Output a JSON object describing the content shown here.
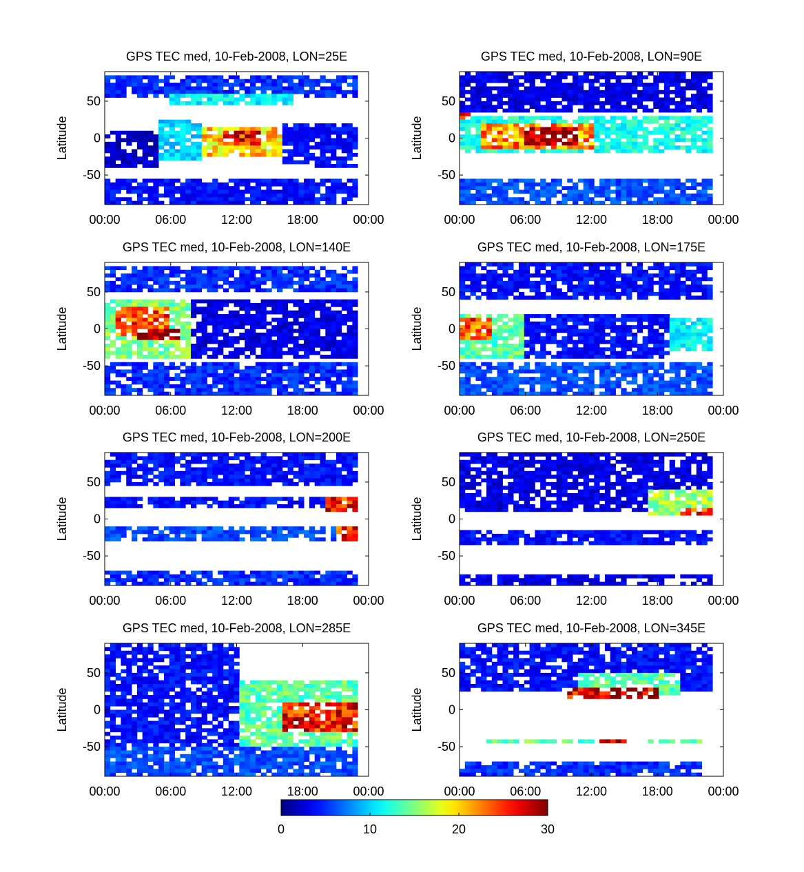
{
  "chart_data": {
    "type": "heatmap",
    "colormap": "jet",
    "colorbar": {
      "range": [
        0,
        30
      ],
      "ticks": [
        "0",
        "10",
        "20",
        "30"
      ]
    },
    "xlim_hours": [
      0,
      24
    ],
    "ylim": [
      -90,
      90
    ],
    "panels": [
      {
        "title": "GPS TEC med, 10-Feb-2008, LON=25E",
        "ylabel": "Latitude",
        "xticks": [
          "00:00",
          "06:00",
          "12:00",
          "18:00",
          "00:00"
        ],
        "yticks": [
          "50",
          "0",
          "-50"
        ],
        "features": [
          {
            "lat": [
              55,
              85
            ],
            "time": [
              0,
              23
            ],
            "tec": 5
          },
          {
            "lat": [
              45,
              60
            ],
            "time": [
              6,
              17
            ],
            "tec": 11
          },
          {
            "lat": [
              -40,
              10
            ],
            "time": [
              0,
              5
            ],
            "tec": 2
          },
          {
            "lat": [
              -30,
              25
            ],
            "time": [
              5,
              9
            ],
            "tec": 10
          },
          {
            "lat": [
              -25,
              15
            ],
            "time": [
              9,
              16
            ],
            "tec": 20
          },
          {
            "lat": [
              -10,
              10
            ],
            "time": [
              11,
              14
            ],
            "tec": 26
          },
          {
            "lat": [
              -40,
              20
            ],
            "time": [
              16,
              23
            ],
            "tec": 4
          },
          {
            "lat": [
              -88,
              -55
            ],
            "time": [
              0,
              23
            ],
            "tec": 4
          }
        ]
      },
      {
        "title": "GPS TEC med, 10-Feb-2008, LON=90E",
        "ylabel": "Latitude",
        "xticks": [
          "00:00",
          "06:00",
          "12:00",
          "18:00",
          "00:00"
        ],
        "yticks": [
          "50",
          "0",
          "-50"
        ],
        "features": [
          {
            "lat": [
              35,
              88
            ],
            "time": [
              0,
              23
            ],
            "tec": 3
          },
          {
            "lat": [
              -20,
              30
            ],
            "time": [
              0,
              23
            ],
            "tec": 12
          },
          {
            "lat": [
              -15,
              20
            ],
            "time": [
              2,
              12
            ],
            "tec": 22
          },
          {
            "lat": [
              -10,
              15
            ],
            "time": [
              6,
              11
            ],
            "tec": 29
          },
          {
            "lat": [
              25,
              35
            ],
            "time": [
              0,
              1
            ],
            "tec": 28
          },
          {
            "lat": [
              -88,
              -55
            ],
            "time": [
              0,
              23
            ],
            "tec": 6
          }
        ]
      },
      {
        "title": "GPS TEC med, 10-Feb-2008, LON=140E",
        "ylabel": "Latitude",
        "xticks": [
          "00:00",
          "06:00",
          "12:00",
          "18:00",
          "00:00"
        ],
        "yticks": [
          "50",
          "0",
          "-50"
        ],
        "features": [
          {
            "lat": [
              50,
              85
            ],
            "time": [
              0,
              23
            ],
            "tec": 5
          },
          {
            "lat": [
              -40,
              40
            ],
            "time": [
              0,
              8
            ],
            "tec": 15
          },
          {
            "lat": [
              -10,
              30
            ],
            "time": [
              1,
              6
            ],
            "tec": 24
          },
          {
            "lat": [
              -15,
              0
            ],
            "time": [
              3,
              7
            ],
            "tec": 29
          },
          {
            "lat": [
              -40,
              40
            ],
            "time": [
              8,
              23
            ],
            "tec": 3
          },
          {
            "lat": [
              -88,
              -45
            ],
            "time": [
              0,
              23
            ],
            "tec": 5
          }
        ]
      },
      {
        "title": "GPS TEC med, 10-Feb-2008, LON=175E",
        "ylabel": "Latitude",
        "xticks": [
          "00:00",
          "06:00",
          "12:00",
          "18:00",
          "00:00"
        ],
        "yticks": [
          "50",
          "0",
          "-50"
        ],
        "features": [
          {
            "lat": [
              40,
              88
            ],
            "time": [
              0,
              23
            ],
            "tec": 4
          },
          {
            "lat": [
              -40,
              20
            ],
            "time": [
              0,
              6
            ],
            "tec": 14
          },
          {
            "lat": [
              -15,
              15
            ],
            "time": [
              0,
              3
            ],
            "tec": 24
          },
          {
            "lat": [
              -40,
              20
            ],
            "time": [
              6,
              19
            ],
            "tec": 4
          },
          {
            "lat": [
              -30,
              15
            ],
            "time": [
              19,
              23
            ],
            "tec": 11
          },
          {
            "lat": [
              -88,
              -45
            ],
            "time": [
              0,
              23
            ],
            "tec": 6
          }
        ]
      },
      {
        "title": "GPS TEC med, 10-Feb-2008, LON=200E",
        "ylabel": "Latitude",
        "xticks": [
          "00:00",
          "06:00",
          "12:00",
          "18:00",
          "00:00"
        ],
        "yticks": [
          "50",
          "0",
          "-50"
        ],
        "features": [
          {
            "lat": [
              45,
              88
            ],
            "time": [
              0,
              23
            ],
            "tec": 4
          },
          {
            "lat": [
              15,
              30
            ],
            "time": [
              0,
              23
            ],
            "tec": 4
          },
          {
            "lat": [
              -30,
              -10
            ],
            "time": [
              0,
              23
            ],
            "tec": 6
          },
          {
            "lat": [
              10,
              30
            ],
            "time": [
              20,
              23
            ],
            "tec": 26
          },
          {
            "lat": [
              -30,
              -10
            ],
            "time": [
              21,
              23
            ],
            "tec": 25
          },
          {
            "lat": [
              -88,
              -70
            ],
            "time": [
              0,
              23
            ],
            "tec": 5
          }
        ]
      },
      {
        "title": "GPS TEC med, 10-Feb-2008, LON=250E",
        "ylabel": "Latitude",
        "xticks": [
          "00:00",
          "06:00",
          "12:00",
          "18:00",
          "00:00"
        ],
        "yticks": [
          "50",
          "0",
          "-50"
        ],
        "features": [
          {
            "lat": [
              10,
              88
            ],
            "time": [
              0,
              23
            ],
            "tec": 3
          },
          {
            "lat": [
              5,
              40
            ],
            "time": [
              17,
              23
            ],
            "tec": 16
          },
          {
            "lat": [
              5,
              15
            ],
            "time": [
              20,
              23
            ],
            "tec": 26
          },
          {
            "lat": [
              -35,
              -15
            ],
            "time": [
              0,
              23
            ],
            "tec": 4
          },
          {
            "lat": [
              -88,
              -75
            ],
            "time": [
              0,
              23
            ],
            "tec": 3
          }
        ]
      },
      {
        "title": "GPS TEC med, 10-Feb-2008, LON=285E",
        "ylabel": "Latitude",
        "xticks": [
          "00:00",
          "06:00",
          "12:00",
          "18:00",
          "00:00"
        ],
        "yticks": [
          "50",
          "0",
          "-50"
        ],
        "features": [
          {
            "lat": [
              -88,
              88
            ],
            "time": [
              0,
              12
            ],
            "tec": 4
          },
          {
            "lat": [
              -50,
              40
            ],
            "time": [
              12,
              23
            ],
            "tec": 14
          },
          {
            "lat": [
              -30,
              10
            ],
            "time": [
              16,
              23
            ],
            "tec": 26
          },
          {
            "lat": [
              -88,
              -50
            ],
            "time": [
              0,
              23
            ],
            "tec": 6
          }
        ]
      },
      {
        "title": "GPS TEC med, 10-Feb-2008, LON=345E",
        "ylabel": "Latitude",
        "xticks": [
          "00:00",
          "06:00",
          "12:00",
          "18:00",
          "00:00"
        ],
        "yticks": [
          "50",
          "0",
          "-50"
        ],
        "features": [
          {
            "lat": [
              25,
              88
            ],
            "time": [
              0,
              23
            ],
            "tec": 4
          },
          {
            "lat": [
              20,
              50
            ],
            "time": [
              11,
              20
            ],
            "tec": 14
          },
          {
            "lat": [
              15,
              30
            ],
            "time": [
              10,
              18
            ],
            "tec": 28
          },
          {
            "lat": [
              -45,
              -40
            ],
            "time": [
              0,
              22
            ],
            "tec": 14
          },
          {
            "lat": [
              -45,
              -40
            ],
            "time": [
              12,
              16
            ],
            "tec": 29
          },
          {
            "lat": [
              -88,
              -70
            ],
            "time": [
              0,
              22
            ],
            "tec": 5
          }
        ]
      }
    ]
  }
}
